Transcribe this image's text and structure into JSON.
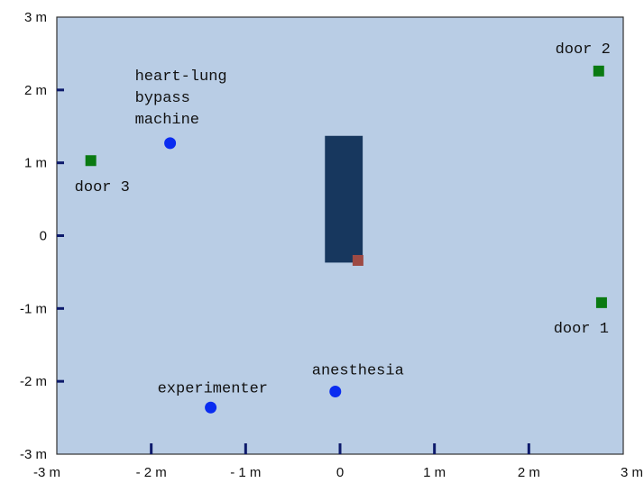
{
  "chart_data": {
    "type": "scatter",
    "title": "",
    "xlabel": "",
    "ylabel": "",
    "xlim": [
      -3,
      3
    ],
    "ylim": [
      -3,
      3
    ],
    "x_ticks": [
      {
        "value": -3,
        "label": "-3 m"
      },
      {
        "value": -2,
        "label": "- 2 m"
      },
      {
        "value": -1,
        "label": "- 1 m"
      },
      {
        "value": 0,
        "label": "0"
      },
      {
        "value": 1,
        "label": "1 m"
      },
      {
        "value": 2,
        "label": "2 m"
      },
      {
        "value": 3,
        "label": "3 m"
      }
    ],
    "y_ticks": [
      {
        "value": 3,
        "label": "3 m"
      },
      {
        "value": 2,
        "label": "2 m"
      },
      {
        "value": 1,
        "label": "1 m"
      },
      {
        "value": 0,
        "label": "0"
      },
      {
        "value": -1,
        "label": "-1 m"
      },
      {
        "value": -2,
        "label": "-2 m"
      },
      {
        "value": -3,
        "label": "-3 m"
      }
    ],
    "table_rect": {
      "x_min": -0.16,
      "x_max": 0.24,
      "y_min": -0.37,
      "y_max": 1.37
    },
    "points": [
      {
        "name": "heart-lung-bypass-machine",
        "label_lines": [
          "heart-lung",
          "bypass",
          "machine"
        ],
        "shape": "circle",
        "x": -1.8,
        "y": 1.27,
        "color": "#0a2cf0"
      },
      {
        "name": "anesthesia",
        "label_lines": [
          "anesthesia"
        ],
        "shape": "circle",
        "x": -0.05,
        "y": -2.14,
        "color": "#0a2cf0"
      },
      {
        "name": "experimenter",
        "label_lines": [
          "experimenter"
        ],
        "shape": "circle",
        "x": -1.37,
        "y": -2.36,
        "color": "#0a2cf0"
      },
      {
        "name": "door-1",
        "label_lines": [
          "door 1"
        ],
        "shape": "square",
        "x": 2.77,
        "y": -0.92,
        "color": "#0a7a12"
      },
      {
        "name": "door-2",
        "label_lines": [
          "door 2"
        ],
        "shape": "square",
        "x": 2.74,
        "y": 2.26,
        "color": "#0a7a12"
      },
      {
        "name": "door-3",
        "label_lines": [
          "door 3"
        ],
        "shape": "square",
        "x": -2.64,
        "y": 1.03,
        "color": "#0a7a12"
      },
      {
        "name": "subject-marker",
        "label_lines": [],
        "shape": "square",
        "x": 0.19,
        "y": -0.34,
        "color": "#9e4a44"
      }
    ],
    "colors": {
      "background": "#b9cde5",
      "table": "#17375e",
      "axis": "#0d1a6b"
    }
  }
}
